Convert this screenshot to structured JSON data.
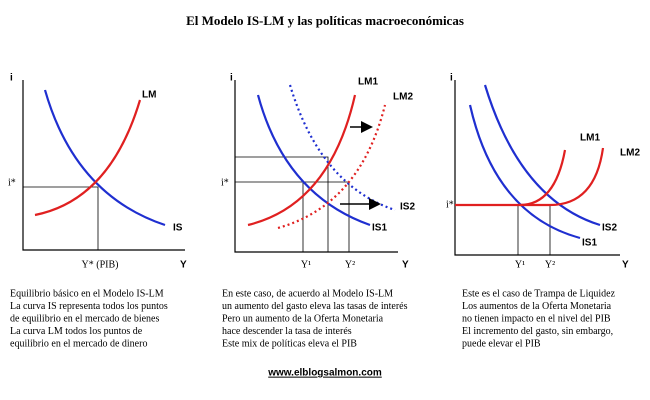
{
  "title": "El Modelo IS-LM y las políticas macroeconómicas",
  "panels": [
    {
      "y_axis": "i",
      "x_axis": "Y",
      "i_star": "i*",
      "y_star": "Y* (PIB)",
      "lm": "LM",
      "is": "IS",
      "notes": [
        "Equilibrio básico en el Modelo IS-LM",
        "La curva IS representa todos los puntos",
        "de equilibrio en el mercado de bienes",
        "La curva LM todos los puntos de",
        "equilibrio en el mercado de dinero"
      ]
    },
    {
      "y_axis": "i",
      "x_axis": "Y",
      "i_star": "i*",
      "y1": "Y¹",
      "y2": "Y²",
      "lm1": "LM1",
      "lm2": "LM2",
      "is1": "IS1",
      "is2": "IS2",
      "notes": [
        "En este caso, de acuerdo al Modelo IS-LM",
        "un aumento del gasto eleva las tasas de interés",
        "Pero un aumento de la Oferta Monetaria",
        "hace descender la tasa de interés",
        "Este mix de políticas eleva el PIB"
      ]
    },
    {
      "y_axis": "i",
      "x_axis": "Y",
      "i_star": "i*",
      "y1": "Y¹",
      "y2": "Y²",
      "lm1": "LM1",
      "lm2": "LM2",
      "is1": "IS1",
      "is2": "IS2",
      "notes": [
        "Este es el caso de Trampa de Liquidez",
        "Los aumentos de la Oferta Monetaria",
        "no tienen impacto en el nivel del PIB",
        "El incremento del gasto, sin embargo,",
        "puede elevar el PIB"
      ]
    }
  ],
  "footer": "www.elblogsalmon.com"
}
